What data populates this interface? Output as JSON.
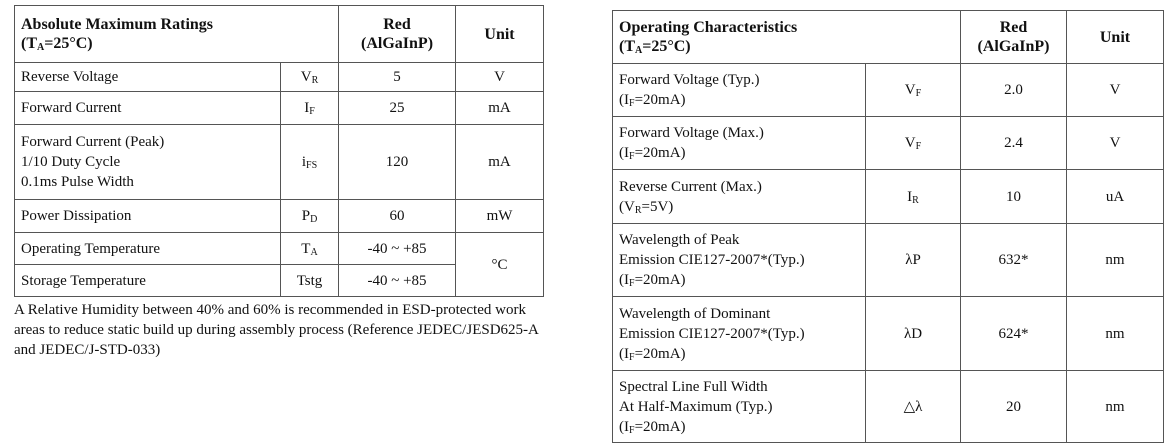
{
  "absolute_max": {
    "title": "Absolute Maximum Ratings",
    "condition": {
      "pre": "(T",
      "sub": "A",
      "post": "=25°C)"
    },
    "col_red": "Red",
    "col_red_material": "(AlGaInP)",
    "col_unit": "Unit",
    "rows": [
      {
        "lines": [
          "Reverse Voltage"
        ],
        "symbol": {
          "base": "V",
          "sub": "R"
        },
        "value": "5",
        "unit": "V"
      },
      {
        "lines": [
          "Forward Current"
        ],
        "symbol": {
          "base": "I",
          "sub": "F"
        },
        "value": "25",
        "unit": "mA"
      },
      {
        "lines": [
          "Forward Current (Peak)",
          "1/10 Duty Cycle",
          "0.1ms Pulse Width"
        ],
        "symbol": {
          "base": "i",
          "sub": "FS"
        },
        "value": "120",
        "unit": "mA"
      },
      {
        "lines": [
          "Power Dissipation"
        ],
        "symbol": {
          "base": "P",
          "sub": "D"
        },
        "value": "60",
        "unit": "mW"
      },
      {
        "lines": [
          "Operating Temperature"
        ],
        "symbol": {
          "base": "T",
          "sub": "A"
        },
        "value": "-40 ~ +85",
        "unit": "°C"
      },
      {
        "lines": [
          "Storage Temperature"
        ],
        "symbol": {
          "base": "Tstg"
        },
        "value": "-40 ~ +85"
      }
    ],
    "note": "A Relative Humidity between 40% and 60% is recommended in ESD-protected work areas to reduce static build up during assembly process (Reference JEDEC/JESD625-A and JEDEC/J-STD-033)"
  },
  "operating": {
    "title": "Operating Characteristics",
    "condition": {
      "pre": "(T",
      "sub": "A",
      "post": "=25°C)"
    },
    "col_red": "Red",
    "col_red_material": "(AlGaInP)",
    "col_unit": "Unit",
    "rows": [
      {
        "lines": [
          "Forward Voltage (Typ.)"
        ],
        "condition": {
          "pre": "(I",
          "sub": "F",
          "post": "=20mA)"
        },
        "symbol": {
          "base": "V",
          "sub": "F"
        },
        "value": "2.0",
        "unit": "V"
      },
      {
        "lines": [
          "Forward Voltage (Max.)"
        ],
        "condition": {
          "pre": "(I",
          "sub": "F",
          "post": "=20mA)"
        },
        "symbol": {
          "base": "V",
          "sub": "F"
        },
        "value": "2.4",
        "unit": "V"
      },
      {
        "lines": [
          "Reverse Current (Max.)"
        ],
        "condition": {
          "pre": "(V",
          "sub": "R",
          "post": "=5V)"
        },
        "symbol": {
          "base": "I",
          "sub": "R"
        },
        "value": "10",
        "unit": "uA"
      },
      {
        "lines": [
          "Wavelength of Peak",
          "Emission  CIE127-2007*(Typ.)"
        ],
        "condition": {
          "pre": "(I",
          "sub": "F",
          "post": "=20mA)"
        },
        "symbol": {
          "base": "λP"
        },
        "value": "632*",
        "unit": "nm"
      },
      {
        "lines": [
          "Wavelength of Dominant",
          "Emission  CIE127-2007*(Typ.)"
        ],
        "condition": {
          "pre": "(I",
          "sub": "F",
          "post": "=20mA)"
        },
        "symbol": {
          "base": "λD"
        },
        "value": "624*",
        "unit": "nm"
      },
      {
        "lines": [
          "Spectral Line Full Width",
          "At Half-Maximum (Typ.)"
        ],
        "condition": {
          "pre": "(I",
          "sub": "F",
          "post": "=20mA)"
        },
        "symbol": {
          "base": "△λ"
        },
        "value": "20",
        "unit": "nm"
      }
    ]
  }
}
